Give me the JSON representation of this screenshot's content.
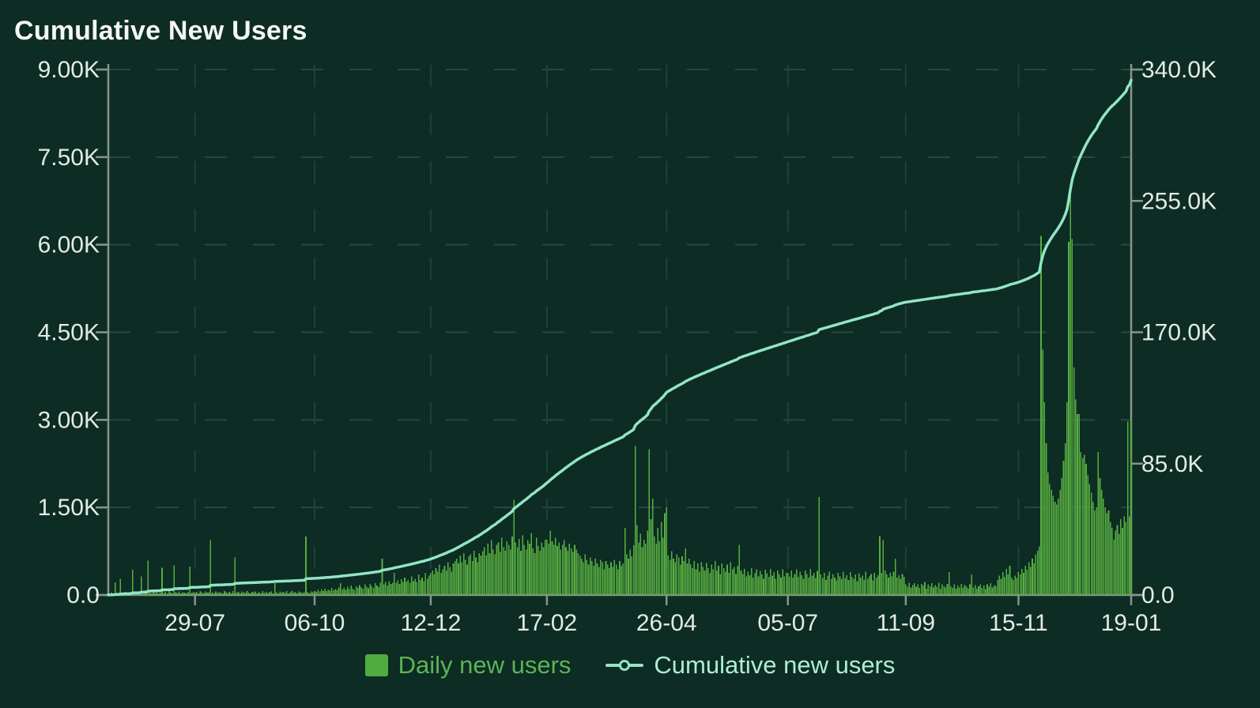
{
  "title": "Cumulative New Users",
  "colors": {
    "background": "#0D2C24",
    "title": "#F4F7F5",
    "axis_line": "#8A938E",
    "tick_label": "#E3EAE7",
    "grid_horizontal": "#27493F",
    "grid_vertical": "#1F4238",
    "bar": "#57AE41",
    "legend_bar_swatch": "#4EAC3F",
    "daily_label": "#5CB455",
    "line": "#92E5C7",
    "cumulative_label": "#ADEDD7"
  },
  "legend": {
    "items": [
      {
        "label": "Daily new users",
        "type": "bar"
      },
      {
        "label": "Cumulative new users",
        "type": "line"
      }
    ]
  },
  "chart_data": {
    "type": "combo_bar_line",
    "title": "Cumulative New Users",
    "grid": {
      "horizontal": true,
      "vertical": true,
      "dashed": true
    },
    "legend_position": "bottom",
    "x_axis": {
      "tick_labels": [
        "29-07",
        "06-10",
        "12-12",
        "17-02",
        "26-04",
        "05-07",
        "11-09",
        "15-11",
        "19-01"
      ],
      "tick_indices": [
        50,
        119,
        186,
        253,
        322,
        392,
        460,
        525,
        590
      ],
      "num_points": 591
    },
    "left_axis": {
      "max": 9000,
      "tick_values": [
        0,
        1500,
        3000,
        4500,
        6000,
        7500,
        9000
      ],
      "tick_labels": [
        "0.0",
        "1.50K",
        "3.00K",
        "4.50K",
        "6.00K",
        "7.50K",
        "9.00K"
      ]
    },
    "right_axis": {
      "max": 340000,
      "tick_values": [
        0,
        85000,
        170000,
        255000,
        340000
      ],
      "tick_labels": [
        "0.0",
        "85.0K",
        "170.0K",
        "255.0K",
        "340.0K"
      ]
    },
    "series": [
      {
        "name": "Daily new users",
        "type": "bar",
        "y_axis": "left",
        "values": [
          30,
          20,
          45,
          25,
          215,
          35,
          25,
          280,
          40,
          30,
          55,
          25,
          45,
          35,
          430,
          30,
          50,
          25,
          40,
          320,
          35,
          55,
          30,
          590,
          45,
          30,
          60,
          35,
          50,
          25,
          40,
          470,
          35,
          55,
          30,
          65,
          40,
          30,
          510,
          45,
          35,
          60,
          30,
          50,
          40,
          25,
          55,
          490,
          35,
          45,
          40,
          55,
          30,
          65,
          45,
          35,
          60,
          40,
          50,
          940,
          45,
          30,
          60,
          35,
          55,
          40,
          30,
          70,
          45,
          35,
          55,
          30,
          65,
          640,
          40,
          55,
          30,
          60,
          45,
          35,
          65,
          40,
          30,
          55,
          45,
          60,
          35,
          50,
          30,
          70,
          40,
          55,
          35,
          45,
          60,
          30,
          200,
          45,
          30,
          60,
          40,
          55,
          35,
          65,
          30,
          45,
          70,
          40,
          55,
          30,
          60,
          45,
          35,
          50,
          1000,
          50,
          35,
          60,
          45,
          70,
          55,
          85,
          60,
          95,
          70,
          110,
          65,
          90,
          75,
          120,
          80,
          100,
          90,
          130,
          200,
          95,
          120,
          85,
          140,
          100,
          160,
          110,
          90,
          150,
          120,
          170,
          130,
          105,
          180,
          140,
          115,
          190,
          150,
          125,
          200,
          160,
          135,
          210,
          620,
          180,
          220,
          160,
          240,
          190,
          210,
          380,
          210,
          250,
          190,
          270,
          220,
          300,
          230,
          260,
          210,
          320,
          240,
          280,
          220,
          350,
          260,
          300,
          240,
          380,
          280,
          330,
          380,
          420,
          350,
          460,
          400,
          520,
          380,
          440,
          500,
          420,
          560,
          480,
          400,
          540,
          580,
          620,
          540,
          680,
          560,
          720,
          600,
          520,
          660,
          700,
          580,
          760,
          640,
          560,
          720,
          680,
          750,
          820,
          680,
          880,
          720,
          940,
          780,
          700,
          860,
          900,
          740,
          980,
          820,
          760,
          920,
          860,
          780,
          1000,
          1630,
          900,
          820,
          960,
          760,
          1020,
          860,
          780,
          940,
          880,
          1060,
          800,
          720,
          980,
          840,
          760,
          900,
          820,
          950,
          950,
          880,
          1100,
          920,
          860,
          980,
          840,
          900,
          780,
          860,
          940,
          820,
          760,
          880,
          800,
          740,
          860,
          780,
          720,
          680,
          620,
          560,
          700,
          600,
          520,
          640,
          580,
          500,
          620,
          540,
          480,
          600,
          560,
          440,
          580,
          520,
          460,
          560,
          480,
          600,
          520,
          440,
          580,
          500,
          540,
          1150,
          700,
          620,
          780,
          660,
          850,
          2550,
          1200,
          900,
          1050,
          820,
          950,
          880,
          1100,
          2500,
          1300,
          1650,
          1000,
          880,
          1150,
          920,
          1250,
          980,
          1400,
          1500,
          680,
          600,
          750,
          620,
          560,
          700,
          640,
          520,
          660,
          580,
          800,
          540,
          620,
          520,
          460,
          580,
          440,
          540,
          400,
          560,
          480,
          420,
          550,
          460,
          380,
          520,
          440,
          580,
          420,
          500,
          360,
          540,
          460,
          400,
          520,
          380,
          560,
          440,
          480,
          360,
          500,
          860,
          420,
          360,
          450,
          320,
          400,
          340,
          460,
          300,
          380,
          440,
          320,
          410,
          350,
          280,
          430,
          370,
          310,
          450,
          330,
          390,
          280,
          420,
          360,
          300,
          440,
          320,
          380,
          380,
          320,
          420,
          300,
          360,
          440,
          310,
          400,
          340,
          280,
          420,
          360,
          300,
          450,
          330,
          380,
          290,
          410,
          1680,
          350,
          290,
          380,
          260,
          330,
          400,
          280,
          360,
          300,
          250,
          380,
          320,
          270,
          400,
          290,
          340,
          260,
          390,
          310,
          280,
          350,
          240,
          370,
          300,
          330,
          260,
          400,
          280,
          320,
          360,
          250,
          380,
          300,
          340,
          1010,
          380,
          940,
          420,
          350,
          300,
          380,
          320,
          400,
          620,
          300,
          340,
          280,
          360,
          310,
          180,
          140,
          210,
          130,
          170,
          200,
          140,
          180,
          120,
          190,
          160,
          220,
          110,
          180,
          150,
          200,
          130,
          170,
          140,
          210,
          100,
          180,
          150,
          130,
          190,
          390,
          150,
          120,
          180,
          110,
          160,
          130,
          190,
          120,
          170,
          140,
          110,
          180,
          350,
          130,
          170,
          110,
          150,
          180,
          120,
          160,
          100,
          180,
          140,
          200,
          130,
          170,
          150,
          260,
          330,
          280,
          390,
          310,
          450,
          350,
          500,
          300,
          260,
          330,
          290,
          400,
          350,
          450,
          380,
          500,
          430,
          560,
          480,
          620,
          540,
          700,
          760,
          830,
          6150,
          4200,
          3300,
          2600,
          2100,
          1900,
          1800,
          1700,
          1600,
          1550,
          1650,
          1800,
          2000,
          2300,
          2600,
          3300,
          6050,
          6950,
          6100,
          3900,
          3350,
          3100,
          3100,
          2450,
          2350,
          2400,
          2250,
          2050,
          1900,
          1750,
          1600,
          1450,
          1500,
          2450,
          2000,
          1800,
          1650,
          1500,
          1400,
          1450,
          1250,
          1150,
          950,
          1100,
          1200,
          1050,
          1300,
          1150,
          1350,
          1250,
          2970,
          1350,
          3000
        ]
      },
      {
        "name": "Cumulative new users",
        "type": "line",
        "y_axis": "right",
        "derivation": "cumulative_sum_of_daily_values",
        "end_value_approx": 333000
      }
    ]
  }
}
